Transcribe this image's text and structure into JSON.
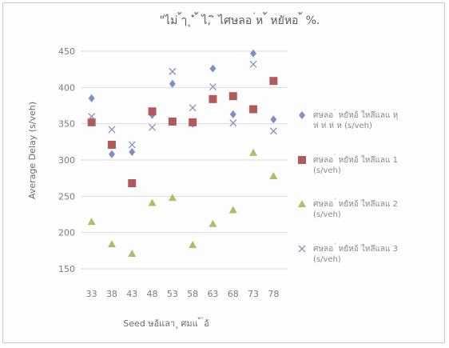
{
  "chart_data": {
    "type": "scatter",
    "title": "\"ไม่ ้ๅ ุ ํ ้ ไ, ิ ไศษลอ ่ห ้ หยัหอ ้ %.",
    "xlabel": "Seed ษอ้แลา ุ ศมแ ้ ่อ้",
    "ylabel": "Average Delay (s/veh)",
    "categories": [
      "33",
      "38",
      "43",
      "48",
      "53",
      "58",
      "63",
      "68",
      "73",
      "78"
    ],
    "ylim": [
      150,
      450
    ],
    "yticks": [
      150,
      200,
      250,
      300,
      350,
      400,
      450
    ],
    "grid": "horizontal",
    "legend_position": "right",
    "series": [
      {
        "name": "ศษลอ ่ หยัหอ้ ใหลึแลแ หุ ห่ ห่ ห่ ห (s/veh)",
        "marker": "diamond",
        "color": "#7f8fc8",
        "values": [
          385,
          308,
          311,
          362,
          405,
          350,
          426,
          363,
          447,
          356
        ]
      },
      {
        "name": "ศษลอ ่ หยัหอ้ ใหลึแลแ 1 (s/veh)",
        "marker": "square",
        "color": "#b25a5a",
        "values": [
          352,
          321,
          268,
          367,
          353,
          352,
          384,
          388,
          370,
          409
        ]
      },
      {
        "name": "ศษลอ ่ หยัหอ้ ใหลึแลแ 2 (s/veh)",
        "marker": "triangle",
        "color": "#a8c06a",
        "values": [
          215,
          184,
          171,
          241,
          248,
          183,
          212,
          231,
          310,
          278
        ]
      },
      {
        "name": "ศษลอ ่ หยัหอ้ ใหลึแลแ 3 (s/veh)",
        "marker": "x",
        "color": "#8f8fc0",
        "values": [
          360,
          342,
          321,
          345,
          422,
          372,
          401,
          351,
          432,
          340
        ]
      }
    ]
  }
}
